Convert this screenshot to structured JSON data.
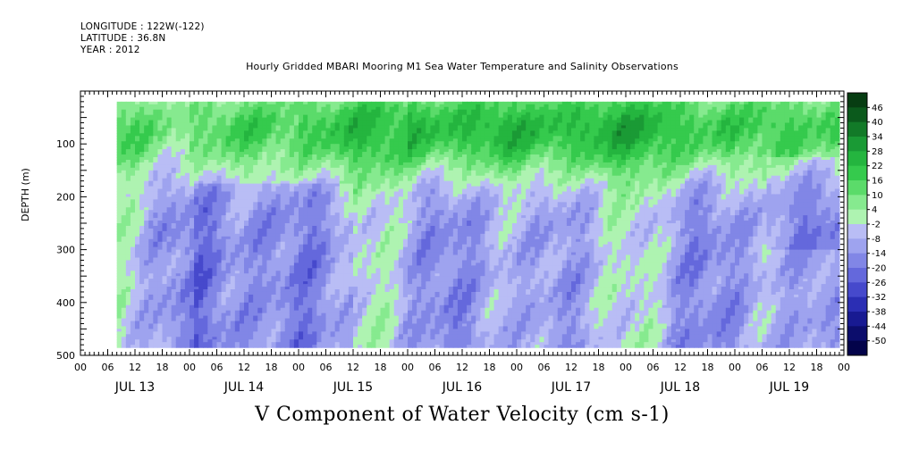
{
  "header": {
    "longitude": "LONGITUDE : 122W(-122)",
    "latitude": "LATITUDE : 36.8N",
    "year": "YEAR : 2012"
  },
  "chart_data": {
    "type": "heatmap",
    "title": "Hourly Gridded MBARI Mooring M1 Sea Water Temperature and Salinity Observations",
    "xlabel": "V Component of Water Velocity (cm s-1)",
    "ylabel": "DEPTH (m)",
    "ylim": [
      500,
      0
    ],
    "y_inverted": true,
    "y_ticks": [
      100,
      200,
      300,
      400,
      500
    ],
    "x_range_hours": [
      0,
      168
    ],
    "x_hour_tick_labels": [
      "00",
      "06",
      "12",
      "18",
      "00",
      "06",
      "12",
      "18",
      "00",
      "06",
      "12",
      "18",
      "00",
      "06",
      "12",
      "18",
      "00",
      "06",
      "12",
      "18",
      "00",
      "06",
      "12",
      "18",
      "00",
      "06",
      "12",
      "18",
      "00"
    ],
    "x_day_labels": [
      "JUL 13",
      "JUL 14",
      "JUL 15",
      "JUL 16",
      "JUL 17",
      "JUL 18",
      "JUL 19"
    ],
    "data_extent": {
      "start_hour": 8,
      "end_hour": 167,
      "depth_top": 20,
      "depth_bottom": 485
    },
    "colorbar": {
      "labels": [
        "46",
        "40",
        "34",
        "28",
        "22",
        "16",
        "10",
        "4",
        "-2",
        "-8",
        "-14",
        "-20",
        "-26",
        "-32",
        "-38",
        "-44",
        "-50"
      ],
      "colors": [
        "#073d12",
        "#0b5a1c",
        "#127a28",
        "#1a9a35",
        "#24b53f",
        "#35ca4d",
        "#5bdb6a",
        "#86ea8f",
        "#aef3b1",
        "#b9bdf5",
        "#9ea3ef",
        "#8186e6",
        "#6468dc",
        "#4649cc",
        "#2b2eb4",
        "#181a92",
        "#0c0d6c",
        "#03034a"
      ],
      "range": [
        -50,
        52
      ]
    },
    "pattern_notes": "Upper layer (0-180 m) positive/green, strongest (~22-34) around JUL 16 and JUL 17-18; mid/lower depths mostly negative/blue (-2 to -14) with alternating green vertical bands."
  }
}
